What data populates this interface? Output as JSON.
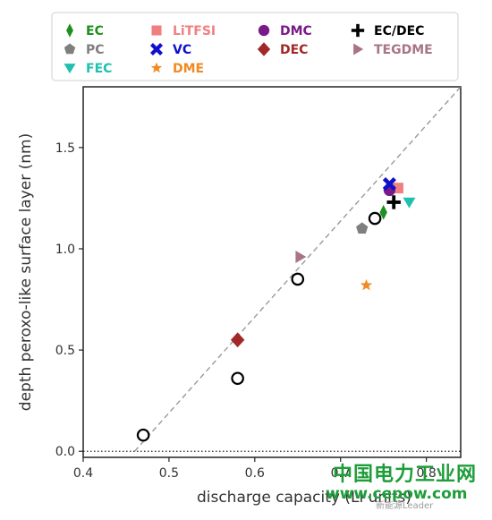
{
  "chart_data": {
    "type": "scatter",
    "xlabel": "discharge capacity (Li units)",
    "ylabel": "depth peroxo-like surface layer (nm)",
    "xlim": [
      0.4,
      0.84
    ],
    "ylim": [
      -0.03,
      1.8
    ],
    "xticks": [
      "0.4",
      "0.5",
      "0.6",
      "0.7",
      "0.8"
    ],
    "yticks": [
      "0.0",
      "0.5",
      "1.0",
      "1.5"
    ],
    "grid": false,
    "legend_position": "top",
    "fit_line": {
      "x": [
        0.46,
        0.84
      ],
      "y": [
        0.0,
        1.8
      ],
      "style": "dashed",
      "color": "#999999"
    },
    "zero_line": {
      "y": 0.0,
      "style": "dotted"
    },
    "open_circles": [
      {
        "x": 0.47,
        "y": 0.08
      },
      {
        "x": 0.58,
        "y": 0.36
      },
      {
        "x": 0.65,
        "y": 0.85
      },
      {
        "x": 0.74,
        "y": 1.15
      }
    ],
    "series": [
      {
        "name": "EC",
        "marker": "diamond-thin",
        "color": "#1f8f1f",
        "x": 0.75,
        "y": 1.18
      },
      {
        "name": "LiTFSI",
        "marker": "square",
        "color": "#f08080",
        "x": 0.767,
        "y": 1.3
      },
      {
        "name": "DMC",
        "marker": "circle",
        "color": "#7a1a8a",
        "x": 0.757,
        "y": 1.29
      },
      {
        "name": "EC/DEC",
        "marker": "plus",
        "color": "#000000",
        "x": 0.762,
        "y": 1.23
      },
      {
        "name": "PC",
        "marker": "pentagon",
        "color": "#7f7f7f",
        "x": 0.725,
        "y": 1.1
      },
      {
        "name": "VC",
        "marker": "x",
        "color": "#1010cc",
        "x": 0.757,
        "y": 1.32
      },
      {
        "name": "DEC",
        "marker": "diamond",
        "color": "#a02828",
        "x": 0.58,
        "y": 0.55
      },
      {
        "name": "TEGDME",
        "marker": "triangle-right",
        "color": "#a87585",
        "x": 0.653,
        "y": 0.96
      },
      {
        "name": "FEC",
        "marker": "triangle-down",
        "color": "#20c0b0",
        "x": 0.78,
        "y": 1.23
      },
      {
        "name": "DME",
        "marker": "star",
        "color": "#f08a24",
        "x": 0.73,
        "y": 0.82
      }
    ]
  },
  "watermark": {
    "line1": "中国电力工业网",
    "line2": "www.cepow.com",
    "line3": "新能源Leader"
  }
}
